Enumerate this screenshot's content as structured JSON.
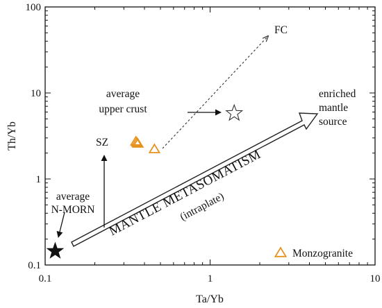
{
  "chart_data": {
    "type": "scatter",
    "title": "",
    "xlabel": "Ta/Yb",
    "ylabel": "Th/Yb",
    "xscale": "log",
    "yscale": "log",
    "xlim": [
      0.1,
      10
    ],
    "ylim": [
      0.1,
      100
    ],
    "x_ticks": [
      {
        "value": 0.1,
        "label": "0.1"
      },
      {
        "value": 1,
        "label": "1"
      },
      {
        "value": 10,
        "label": "10"
      }
    ],
    "y_ticks": [
      {
        "value": 0.1,
        "label": "0.1"
      },
      {
        "value": 1,
        "label": "1"
      },
      {
        "value": 10,
        "label": "10"
      },
      {
        "value": 100,
        "label": "100"
      }
    ],
    "grid": false,
    "legend": {
      "position": "bottom-right",
      "entries": [
        "Monzogranite"
      ]
    },
    "series": [
      {
        "name": "Monzogranite",
        "marker": "open-triangle",
        "color": "#e8921e",
        "points": [
          {
            "x": 0.355,
            "y": 2.7
          },
          {
            "x": 0.36,
            "y": 2.62
          },
          {
            "x": 0.365,
            "y": 2.55
          },
          {
            "x": 0.46,
            "y": 2.2
          }
        ]
      }
    ],
    "reference_points": [
      {
        "id": "nmorb",
        "label_lines": [
          "average",
          "N-MORN"
        ],
        "x": 0.115,
        "y": 0.145,
        "marker": "filled-star"
      },
      {
        "id": "upper-crust",
        "label_lines": [
          "average",
          "upper crust"
        ],
        "x": 1.4,
        "y": 5.8,
        "marker": "open-star"
      }
    ],
    "annotations": {
      "sz": "SZ",
      "fc": "FC",
      "enriched": [
        "enriched",
        "mantle",
        "source"
      ],
      "metasomatism": "MANTLE METASOMATISM",
      "intraplate": "(intraplate)"
    },
    "colors": {
      "axis": "#111111",
      "monzogranite": "#e8921e",
      "star_fill": "#111111"
    }
  }
}
